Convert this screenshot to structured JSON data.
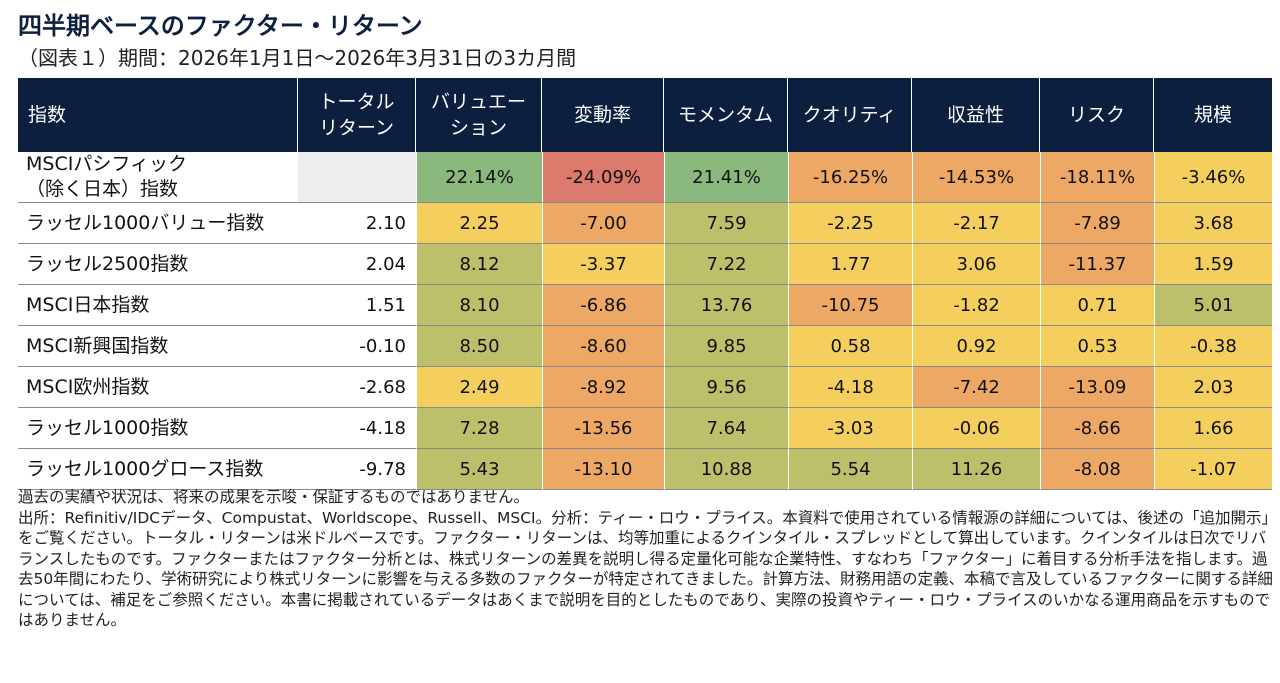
{
  "title": "四半期ベースのファクター・リターン",
  "subtitle": "（図表１）期間：2026年1月1日～2026年3月31日の3カ月間",
  "headers": {
    "index": "指数",
    "total_line1": "トータル",
    "total_line2": "リターン",
    "value_line1": "バリュエー",
    "value_line2": "ション",
    "volatility": "変動率",
    "momentum": "モメンタム",
    "quality": "クオリティ",
    "profitability": "収益性",
    "risk": "リスク",
    "size": "規模"
  },
  "rows": [
    {
      "name_line1": "MSCIパシフィック",
      "name_line2": "（除く日本）指数",
      "total": "",
      "cells": [
        "22.14%",
        "-24.09%",
        "21.41%",
        "-16.25%",
        "-14.53%",
        "-18.11%",
        "-3.46%"
      ]
    },
    {
      "name_line1": "ラッセル1000バリュー指数",
      "name_line2": "",
      "total": "2.10",
      "cells": [
        "2.25",
        "-7.00",
        "7.59",
        "-2.25",
        "-2.17",
        "-7.89",
        "3.68"
      ]
    },
    {
      "name_line1": "ラッセル2500指数",
      "name_line2": "",
      "total": "2.04",
      "cells": [
        "8.12",
        "-3.37",
        "7.22",
        "1.77",
        "3.06",
        "-11.37",
        "1.59"
      ]
    },
    {
      "name_line1": "MSCI日本指数",
      "name_line2": "",
      "total": "1.51",
      "cells": [
        "8.10",
        "-6.86",
        "13.76",
        "-10.75",
        "-1.82",
        "0.71",
        "5.01"
      ]
    },
    {
      "name_line1": "MSCI新興国指数",
      "name_line2": "",
      "total": "-0.10",
      "cells": [
        "8.50",
        "-8.60",
        "9.85",
        "0.58",
        "0.92",
        "0.53",
        "-0.38"
      ]
    },
    {
      "name_line1": "MSCI欧州指数",
      "name_line2": "",
      "total": "-2.68",
      "cells": [
        "2.49",
        "-8.92",
        "9.56",
        "-4.18",
        "-7.42",
        "-13.09",
        "2.03"
      ]
    },
    {
      "name_line1": "ラッセル1000指数",
      "name_line2": "",
      "total": "-4.18",
      "cells": [
        "7.28",
        "-13.56",
        "7.64",
        "-3.03",
        "-0.06",
        "-8.66",
        "1.66"
      ]
    },
    {
      "name_line1": "ラッセル1000グロース指数",
      "name_line2": "",
      "total": "-9.78",
      "cells": [
        "5.43",
        "-13.10",
        "10.88",
        "5.54",
        "11.26",
        "-8.08",
        "-1.07"
      ]
    }
  ],
  "heat_colors": {
    "strong_positive": "#8bb87c",
    "positive": "#bcc06b",
    "neutral": "#f4cf5e",
    "negative": "#eda865",
    "strong_negative": "#dc7a6e"
  },
  "notes": {
    "line1": "過去の実績や状況は、将来の成果を示唆・保証するものではありません。",
    "line2": "出所：Refinitiv/IDCデータ、Compustat、Worldscope、Russell、MSCI。分析：ティー・ロウ・プライス。本資料で使用されている情報源の詳細については、後述の「追加開示」をご覧ください。トータル・リターンは米ドルベースです。ファクター・リターンは、均等加重によるクインタイル・スプレッドとして算出しています。クインタイルは日次でリバランスしたものです。ファクターまたはファクター分析とは、株式リターンの差異を説明し得る定量化可能な企業特性、すなわち「ファクター」に着目する分析手法を指します。過去50年間にわたり、学術研究により株式リターンに影響を与える多数のファクターが特定されてきました。計算方法、財務用語の定義、本稿で言及しているファクターに関する詳細については、補足をご参照ください。本書に掲載されているデータはあくまで説明を目的としたものであり、実際の投資やティー・ロウ・プライスのいかなる運用商品を示すものではありません。"
  },
  "chart_data": {
    "type": "table",
    "title": "四半期ベースのファクター・リターン",
    "subtitle": "（図表１）期間：2026年1月1日～2026年3月31日の3カ月間",
    "columns": [
      "指数",
      "トータル・リターン",
      "バリュエーション",
      "変動率",
      "モメンタム",
      "クオリティ",
      "収益性",
      "リスク",
      "規模"
    ],
    "row_labels": [
      "MSCIパシフィック（除く日本）指数",
      "ラッセル1000バリュー指数",
      "ラッセル2500指数",
      "MSCI日本指数",
      "MSCI新興国指数",
      "MSCI欧州指数",
      "ラッセル1000指数",
      "ラッセル1000グロース指数"
    ],
    "total_return": [
      null,
      2.1,
      2.04,
      1.51,
      -0.1,
      -2.68,
      -4.18,
      -9.78
    ],
    "factor_values": [
      [
        22.14,
        -24.09,
        21.41,
        -16.25,
        -14.53,
        -18.11,
        -3.46
      ],
      [
        2.25,
        -7.0,
        7.59,
        -2.25,
        -2.17,
        -7.89,
        3.68
      ],
      [
        8.12,
        -3.37,
        7.22,
        1.77,
        3.06,
        -11.37,
        1.59
      ],
      [
        8.1,
        -6.86,
        13.76,
        -10.75,
        -1.82,
        0.71,
        5.01
      ],
      [
        8.5,
        -8.6,
        9.85,
        0.58,
        0.92,
        0.53,
        -0.38
      ],
      [
        2.49,
        -8.92,
        9.56,
        -4.18,
        -7.42,
        -13.09,
        2.03
      ],
      [
        7.28,
        -13.56,
        7.64,
        -3.03,
        -0.06,
        -8.66,
        1.66
      ],
      [
        5.43,
        -13.1,
        10.88,
        5.54,
        11.26,
        -8.08,
        -1.07
      ]
    ]
  }
}
